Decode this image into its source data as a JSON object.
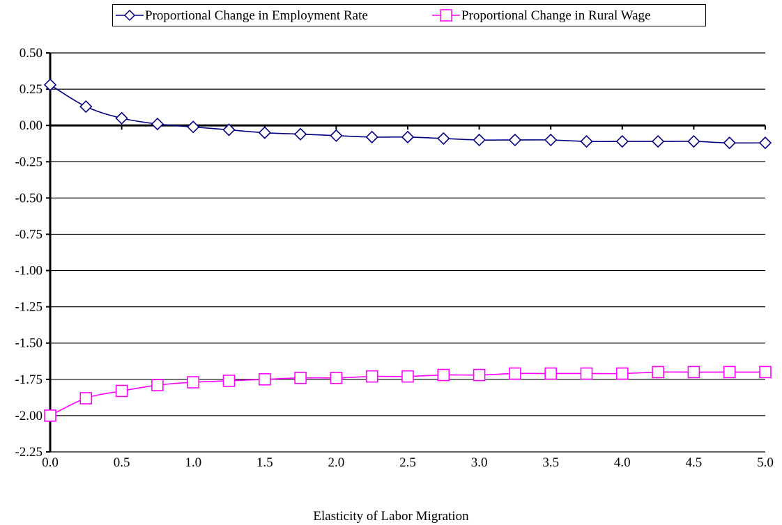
{
  "chart_data": {
    "type": "line",
    "x": [
      0.0,
      0.25,
      0.5,
      0.75,
      1.0,
      1.25,
      1.5,
      1.75,
      2.0,
      2.25,
      2.5,
      2.75,
      3.0,
      3.25,
      3.5,
      3.75,
      4.0,
      4.25,
      4.5,
      4.75,
      5.0
    ],
    "series": [
      {
        "name": "Proportional Change in Employment Rate",
        "color": "#000080",
        "marker": "diamond",
        "values": [
          0.28,
          0.13,
          0.05,
          0.01,
          -0.01,
          -0.03,
          -0.05,
          -0.06,
          -0.07,
          -0.08,
          -0.08,
          -0.09,
          -0.1,
          -0.1,
          -0.1,
          -0.11,
          -0.11,
          -0.11,
          -0.11,
          -0.12,
          -0.12
        ]
      },
      {
        "name": "Proportional Change in Rural Wage",
        "color": "#ff00ff",
        "marker": "square",
        "values": [
          -2.0,
          -1.88,
          -1.83,
          -1.79,
          -1.77,
          -1.76,
          -1.75,
          -1.74,
          -1.74,
          -1.73,
          -1.73,
          -1.72,
          -1.72,
          -1.71,
          -1.71,
          -1.71,
          -1.71,
          -1.7,
          -1.7,
          -1.7,
          -1.7
        ]
      }
    ],
    "xlabel": "Elasticity of Labor Migration",
    "ylabel": "",
    "title": "",
    "xlim": [
      0,
      5
    ],
    "ylim": [
      -2.25,
      0.5
    ],
    "xticks": [
      "0.0",
      "0.5",
      "1.0",
      "1.5",
      "2.0",
      "2.5",
      "3.0",
      "3.5",
      "4.0",
      "4.5",
      "5.0"
    ],
    "yticks": [
      "0.50",
      "0.25",
      "0.00",
      "-0.25",
      "-0.50",
      "-0.75",
      "-1.00",
      "-1.25",
      "-1.50",
      "-1.75",
      "-2.00",
      "-2.25"
    ],
    "grid": true,
    "legend_position": "top"
  }
}
